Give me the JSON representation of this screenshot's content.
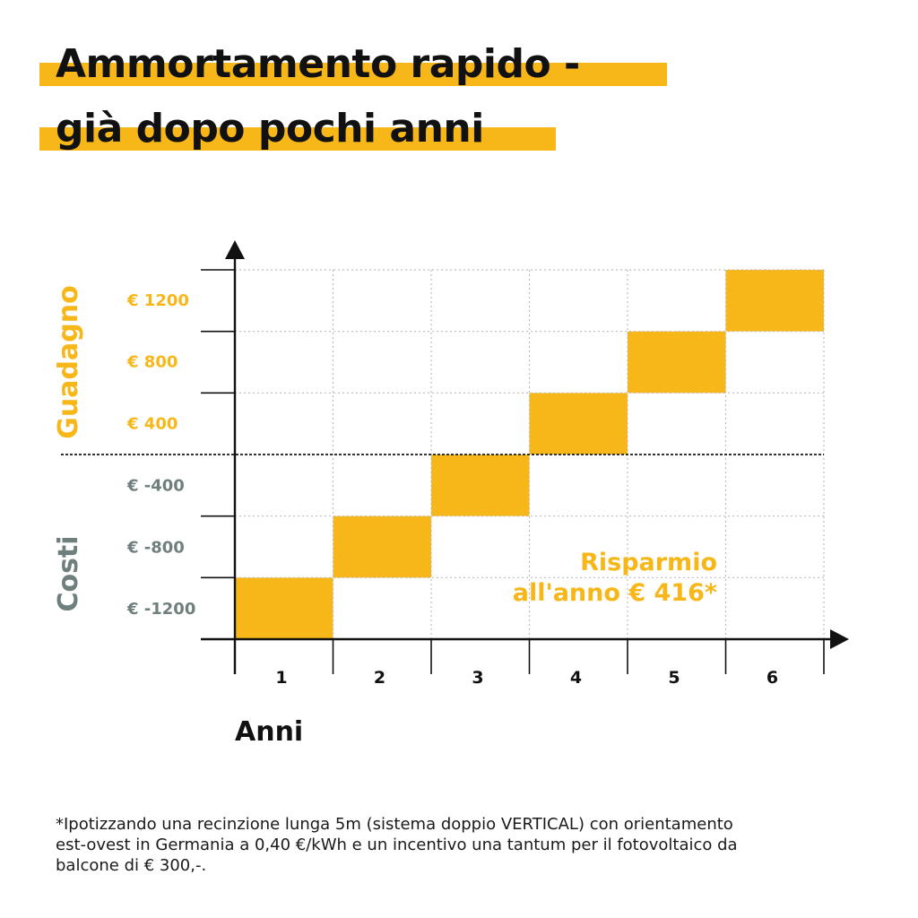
{
  "title": {
    "line1": "Ammortamento rapido -",
    "line2": "già dopo pochi anni"
  },
  "colors": {
    "accent": "#f7b718",
    "gain_label": "#f7b718",
    "cost_label": "#6f7f7d",
    "axis": "#111111",
    "grid": "#bdbdbd"
  },
  "chart_data": {
    "type": "bar",
    "categories": [
      "1",
      "2",
      "3",
      "4",
      "5",
      "6"
    ],
    "xlabel": "Anni",
    "ylim": [
      -1200,
      1200
    ],
    "y_ticks": [
      {
        "value": 1200,
        "label": "€ 1200"
      },
      {
        "value": 800,
        "label": "€ 800"
      },
      {
        "value": 400,
        "label": "€ 400"
      },
      {
        "value": -400,
        "label": "€ -400"
      },
      {
        "value": -800,
        "label": "€ -800"
      },
      {
        "value": -1200,
        "label": "€ -1200"
      }
    ],
    "bars": [
      {
        "category": "1",
        "from": -1200,
        "to": -800
      },
      {
        "category": "2",
        "from": -800,
        "to": -400
      },
      {
        "category": "3",
        "from": -400,
        "to": 0
      },
      {
        "category": "4",
        "from": 0,
        "to": 400
      },
      {
        "category": "5",
        "from": 400,
        "to": 800
      },
      {
        "category": "6",
        "from": 800,
        "to": 1200
      }
    ],
    "region_labels": {
      "positive": "Guadagno",
      "negative": "Costi"
    },
    "annotation": {
      "line1": "Risparmio",
      "line2": "all'anno € 416*"
    },
    "grid": true
  },
  "footnote": "*Ipotizzando una recinzione lunga 5m (sistema doppio VERTICAL) con orientamento est-ovest in Germania a 0,40 €/kWh e un incentivo una tantum per il fotovoltaico da balcone di € 300,-."
}
